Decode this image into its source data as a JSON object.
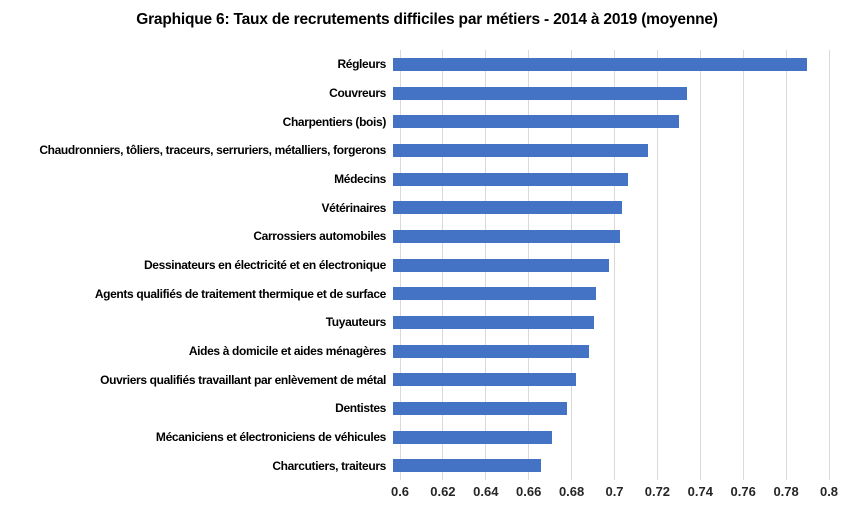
{
  "title": "Graphique 6: Taux de recrutements difficiles par métiers - 2014 à 2019 (moyenne)",
  "colors": {
    "bar": "#4472c4",
    "gridline": "#d9d9d9",
    "title_text": "#000000",
    "tick_text": "#262626",
    "background": "#ffffff"
  },
  "chart_data": {
    "type": "bar",
    "orientation": "horizontal",
    "title": "Graphique 6: Taux de recrutements difficiles par métiers - 2014 à 2019 (moyenne)",
    "xlabel": "",
    "ylabel": "",
    "xlim": [
      0.6,
      0.8
    ],
    "grid": true,
    "legend": false,
    "xtick_labels": [
      "0.6",
      "0.62",
      "0.64",
      "0.66",
      "0.68",
      "0.7",
      "0.72",
      "0.74",
      "0.76",
      "0.78",
      "0.8"
    ],
    "xticks": [
      0.6,
      0.62,
      0.64,
      0.66,
      0.68,
      0.7,
      0.72,
      0.74,
      0.76,
      0.78,
      0.8
    ],
    "categories": [
      "Régleurs",
      "Couvreurs",
      "Charpentiers (bois)",
      "Chaudronniers, tôliers, traceurs, serruriers, métalliers, forgerons",
      "Médecins",
      "Vétérinaires",
      "Carrossiers automobiles",
      "Dessinateurs en électricité et en électronique",
      "Agents qualifiés de traitement thermique et de surface",
      "Tuyauteurs",
      "Aides à domicile et aides ménagères",
      "Ouvriers qualifiés travaillant par enlèvement de métal",
      "Dentistes",
      "Mécaniciens et électroniciens de véhicules",
      "Charcutiers, traiteurs"
    ],
    "values": [
      0.79,
      0.735,
      0.731,
      0.717,
      0.708,
      0.705,
      0.704,
      0.699,
      0.693,
      0.692,
      0.69,
      0.684,
      0.68,
      0.673,
      0.668
    ]
  }
}
